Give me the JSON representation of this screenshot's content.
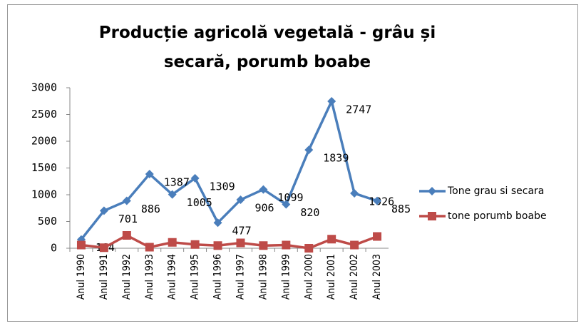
{
  "chart_data": {
    "type": "line",
    "title": "Producție agricolă vegetală - grâu și secară, porumb boabe",
    "categories": [
      "Anul 1990",
      "Anul 1991",
      "Anul 1992",
      "Anul 1993",
      "Anul 1994",
      "Anul 1995",
      "Anul 1996",
      "Anul 1997",
      "Anul 1998",
      "Anul 1999",
      "Anul 2000",
      "Anul 2001",
      "Anul 2002",
      "Anul 2003"
    ],
    "series": [
      {
        "name": "Tone grau si secara",
        "color": "#4a7ebb",
        "marker": "diamond",
        "values": [
          164,
          701,
          886,
          1387,
          1005,
          1309,
          477,
          906,
          1099,
          820,
          1839,
          2747,
          1026,
          885
        ]
      },
      {
        "name": "tone porumb boabe",
        "color": "#be4b48",
        "marker": "square",
        "values": [
          60,
          10,
          240,
          20,
          110,
          70,
          50,
          100,
          50,
          60,
          0,
          170,
          60,
          220
        ]
      }
    ],
    "data_labels_series": 0,
    "ylim": [
      0,
      3000
    ],
    "yticks": [
      0,
      500,
      1000,
      1500,
      2000,
      2500,
      3000
    ],
    "grid": false,
    "legend": "right"
  }
}
